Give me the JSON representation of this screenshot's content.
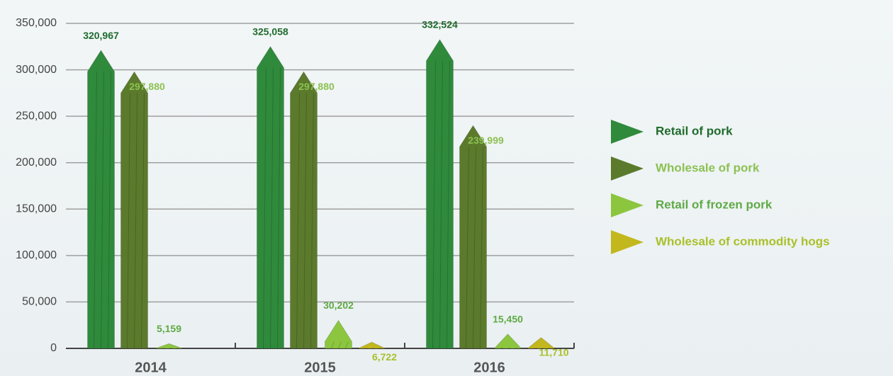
{
  "chart_data": {
    "type": "bar",
    "categories": [
      "2014",
      "2015",
      "2016"
    ],
    "series": [
      {
        "name": "Retail of pork",
        "color": "#2f8a3c",
        "label_color": "#1f6b2c",
        "values": [
          320967,
          325058,
          332524
        ],
        "value_labels": [
          "320,967",
          "325,058",
          "332,524"
        ]
      },
      {
        "name": "Wholesale of pork",
        "color": "#5b7a2c",
        "label_color": "#8cc152",
        "values": [
          297880,
          297880,
          239999
        ],
        "value_labels": [
          "297,880",
          "297,880",
          "239,999"
        ]
      },
      {
        "name": "Retail of frozen pork",
        "color": "#8cc63f",
        "label_color": "#5faa46",
        "values": [
          5159,
          30202,
          15450
        ],
        "value_labels": [
          "5,159",
          "30,202",
          "15,450"
        ]
      },
      {
        "name": "Wholesale of commodity hogs",
        "color": "#c2b81e",
        "label_color": "#a9c02a",
        "values": [
          null,
          6722,
          11710
        ],
        "value_labels": [
          null,
          "6,722",
          "11,710"
        ]
      }
    ],
    "ylim": [
      0,
      350000
    ],
    "yticks": [
      0,
      {
        "value": 50000,
        "label": "50,000"
      },
      {
        "value": 100000,
        "label": "100,000"
      },
      {
        "value": 150000,
        "label": "150,000"
      },
      {
        "value": 200000,
        "label": "200,000"
      },
      {
        "value": 250000,
        "label": "250,000"
      },
      {
        "value": 300000,
        "label": "300,000"
      },
      {
        "value": 350000,
        "label": "350,000"
      }
    ],
    "grid": true,
    "legend": "right"
  }
}
